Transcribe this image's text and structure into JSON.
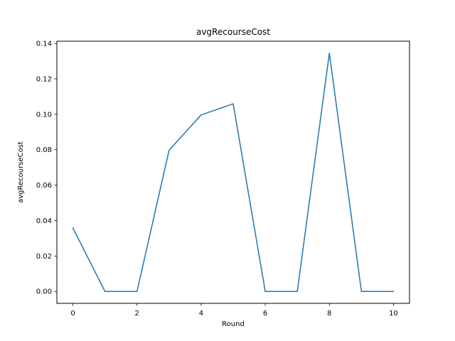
{
  "chart_data": {
    "type": "line",
    "title": "avgRecourseCost",
    "xlabel": "Round",
    "ylabel": "avgRecourseCost",
    "x": [
      0,
      1,
      2,
      3,
      4,
      5,
      6,
      7,
      8,
      9,
      10
    ],
    "series": [
      {
        "values": [
          0.0358,
          0.0,
          0.0,
          0.0797,
          0.0996,
          0.1059,
          0.0,
          0.0,
          0.1345,
          0.0,
          0.0
        ],
        "color": "#1f77b4"
      }
    ],
    "xlim": [
      -0.5,
      10.5
    ],
    "ylim": [
      -0.00672,
      0.14122
    ],
    "xticks": [
      0,
      2,
      4,
      6,
      8,
      10
    ],
    "xtick_labels": [
      "0",
      "2",
      "4",
      "6",
      "8",
      "10"
    ],
    "yticks": [
      0.0,
      0.02,
      0.04,
      0.06,
      0.08,
      0.1,
      0.12,
      0.14
    ],
    "ytick_labels": [
      "0.00",
      "0.02",
      "0.04",
      "0.06",
      "0.08",
      "0.10",
      "0.12",
      "0.14"
    ],
    "grid": false,
    "legend": "none"
  }
}
